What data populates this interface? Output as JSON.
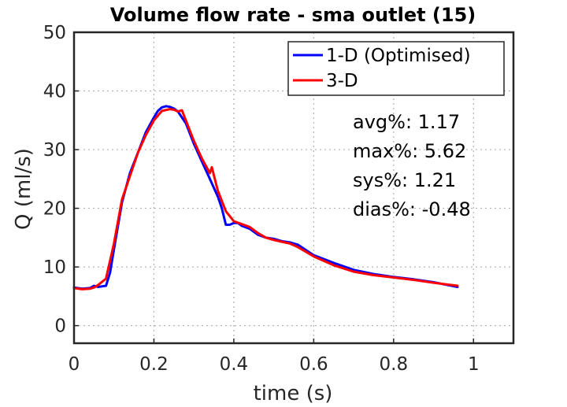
{
  "chart_data": {
    "type": "line",
    "title": "Volume flow rate - sma outlet (15)",
    "xlabel": "time (s)",
    "ylabel": "Q (ml/s)",
    "xlim": [
      0,
      1.1
    ],
    "ylim": [
      -3,
      50
    ],
    "xticks": [
      0,
      0.2,
      0.4,
      0.6,
      0.8,
      1
    ],
    "xtick_labels": [
      "0",
      "0.2",
      "0.4",
      "0.6",
      "0.8",
      "1"
    ],
    "yticks": [
      0,
      10,
      20,
      30,
      40,
      50
    ],
    "ytick_labels": [
      "0",
      "10",
      "20",
      "30",
      "40",
      "50"
    ],
    "grid": true,
    "legend_position": "top-right",
    "series": [
      {
        "name": "1-D (Optimised)",
        "color": "#0000ff",
        "x": [
          0,
          0.02,
          0.04,
          0.05,
          0.06,
          0.08,
          0.09,
          0.1,
          0.12,
          0.14,
          0.16,
          0.18,
          0.2,
          0.21,
          0.22,
          0.23,
          0.24,
          0.25,
          0.26,
          0.28,
          0.3,
          0.32,
          0.34,
          0.36,
          0.37,
          0.38,
          0.39,
          0.4,
          0.41,
          0.42,
          0.44,
          0.46,
          0.48,
          0.5,
          0.52,
          0.54,
          0.56,
          0.58,
          0.6,
          0.65,
          0.7,
          0.75,
          0.8,
          0.85,
          0.9,
          0.96
        ],
        "values": [
          6.5,
          6.3,
          6.4,
          6.8,
          6.6,
          6.8,
          9.0,
          13.0,
          21.0,
          26.0,
          29.5,
          33.0,
          35.5,
          36.6,
          37.2,
          37.4,
          37.3,
          37.0,
          36.5,
          34.5,
          31.0,
          28.0,
          25.0,
          22.0,
          20.0,
          17.2,
          17.2,
          17.5,
          17.5,
          17.0,
          16.5,
          15.5,
          15.0,
          14.8,
          14.4,
          14.2,
          13.8,
          12.9,
          12.0,
          10.7,
          9.5,
          8.8,
          8.3,
          7.9,
          7.4,
          6.6
        ]
      },
      {
        "name": "3-D",
        "color": "#ff0000",
        "x": [
          0,
          0.02,
          0.04,
          0.05,
          0.06,
          0.08,
          0.1,
          0.12,
          0.14,
          0.16,
          0.18,
          0.2,
          0.22,
          0.24,
          0.25,
          0.26,
          0.27,
          0.28,
          0.3,
          0.32,
          0.34,
          0.345,
          0.36,
          0.38,
          0.4,
          0.42,
          0.44,
          0.46,
          0.48,
          0.5,
          0.52,
          0.54,
          0.56,
          0.58,
          0.6,
          0.65,
          0.7,
          0.75,
          0.8,
          0.85,
          0.9,
          0.96
        ],
        "values": [
          6.4,
          6.2,
          6.3,
          6.5,
          6.9,
          8.0,
          14.0,
          21.5,
          25.5,
          29.5,
          32.5,
          35.0,
          36.6,
          36.9,
          36.8,
          36.5,
          36.7,
          35.0,
          31.5,
          28.5,
          26.0,
          27.0,
          23.0,
          19.5,
          17.8,
          17.3,
          16.8,
          15.8,
          15.0,
          14.6,
          14.3,
          14.0,
          13.4,
          12.6,
          11.8,
          10.3,
          9.2,
          8.6,
          8.2,
          7.8,
          7.3,
          6.8
        ]
      }
    ],
    "annotations": [
      "avg%: 1.17",
      "max%: 5.62",
      "sys%: 1.21",
      "dias%: -0.48"
    ]
  }
}
